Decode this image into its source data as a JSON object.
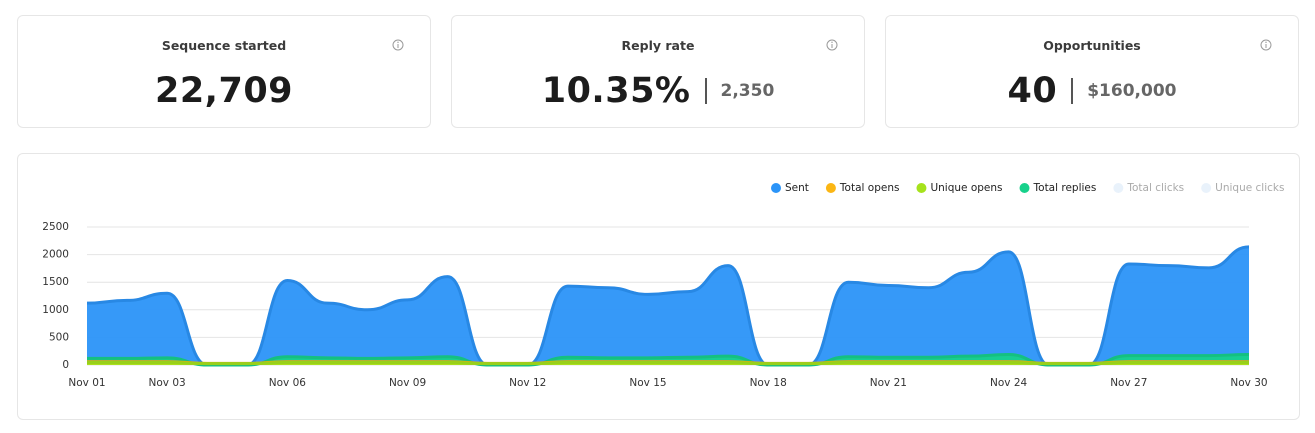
{
  "cards": [
    {
      "title": "Sequence started",
      "value": "22,709"
    },
    {
      "title": "Reply rate",
      "value": "10.35%",
      "secondary": "2,350"
    },
    {
      "title": "Opportunities",
      "value": "40",
      "secondary": "$160,000"
    }
  ],
  "chart_data": {
    "type": "area",
    "categories": [
      "Nov 01",
      null,
      "Nov 03",
      null,
      null,
      "Nov 06",
      null,
      null,
      "Nov 09",
      null,
      null,
      "Nov 12",
      null,
      null,
      "Nov 15",
      null,
      null,
      "Nov 18",
      null,
      null,
      "Nov 21",
      null,
      null,
      "Nov 24",
      null,
      null,
      "Nov 27",
      null,
      null,
      "Nov 30"
    ],
    "ylim": [
      0,
      2500
    ],
    "yticks": [
      0,
      500,
      1000,
      1500,
      2000,
      2500
    ],
    "grid": true,
    "legend": "top-right",
    "series": [
      {
        "name": "Sent",
        "color": "#2b94f8",
        "visible": true,
        "values": [
          1120,
          1170,
          1300,
          0,
          0,
          1530,
          1120,
          1000,
          1180,
          1600,
          0,
          0,
          1430,
          1400,
          1280,
          1330,
          1800,
          0,
          0,
          1500,
          1440,
          1400,
          1680,
          2050,
          0,
          0,
          1830,
          1800,
          1760,
          2140
        ]
      },
      {
        "name": "Total opens",
        "color": "#fbb614",
        "visible": true,
        "values": [
          60,
          60,
          60,
          30,
          30,
          60,
          60,
          60,
          60,
          60,
          30,
          30,
          60,
          60,
          60,
          60,
          60,
          30,
          30,
          60,
          60,
          60,
          60,
          60,
          30,
          30,
          60,
          60,
          60,
          60
        ]
      },
      {
        "name": "Unique opens",
        "color": "#a6e21c",
        "visible": true,
        "values": [
          45,
          45,
          45,
          25,
          25,
          45,
          45,
          45,
          45,
          45,
          25,
          25,
          45,
          45,
          45,
          45,
          45,
          25,
          25,
          45,
          45,
          45,
          45,
          45,
          25,
          25,
          45,
          45,
          45,
          45
        ]
      },
      {
        "name": "Total replies",
        "color": "#17d18b",
        "visible": true,
        "values": [
          120,
          120,
          130,
          0,
          0,
          150,
          130,
          120,
          130,
          150,
          0,
          0,
          140,
          130,
          130,
          140,
          160,
          0,
          0,
          150,
          140,
          140,
          160,
          190,
          0,
          0,
          170,
          170,
          170,
          190
        ]
      },
      {
        "name": "Total clicks",
        "color": "#e9f2fb",
        "visible": false,
        "values": [
          0,
          0,
          0,
          0,
          0,
          0,
          0,
          0,
          0,
          0,
          0,
          0,
          0,
          0,
          0,
          0,
          0,
          0,
          0,
          0,
          0,
          0,
          0,
          0,
          0,
          0,
          0,
          0,
          0,
          0
        ]
      },
      {
        "name": "Unique clicks",
        "color": "#e9f2fb",
        "visible": false,
        "values": [
          0,
          0,
          0,
          0,
          0,
          0,
          0,
          0,
          0,
          0,
          0,
          0,
          0,
          0,
          0,
          0,
          0,
          0,
          0,
          0,
          0,
          0,
          0,
          0,
          0,
          0,
          0,
          0,
          0,
          0
        ]
      }
    ]
  }
}
